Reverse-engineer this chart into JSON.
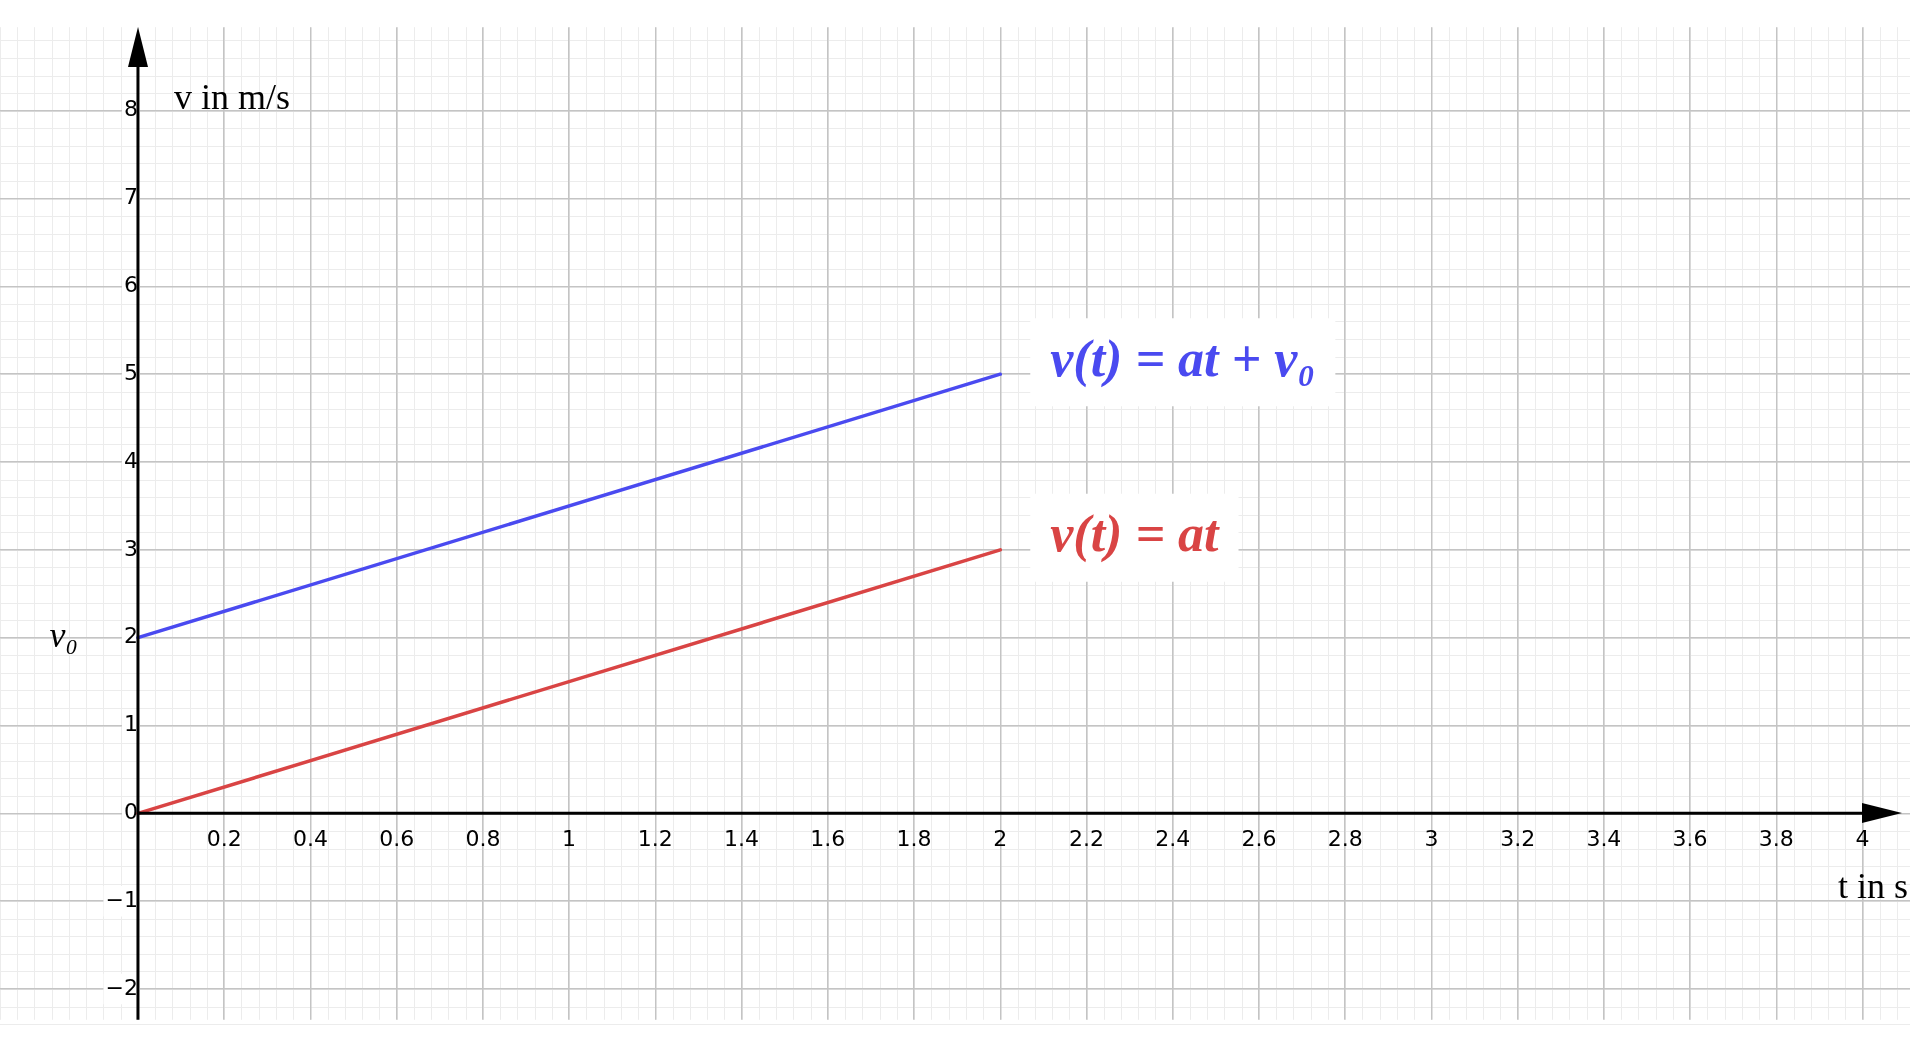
{
  "chart_data": {
    "type": "line",
    "xlabel": "t in s",
    "ylabel": "v in m/s",
    "xlim": [
      -0.32,
      4.11
    ],
    "ylim": [
      -2.35,
      8.95
    ],
    "xticks": [
      0.2,
      0.4,
      0.6,
      0.8,
      1,
      1.2,
      1.4,
      1.6,
      1.8,
      2,
      2.2,
      2.4,
      2.6,
      2.8,
      3,
      3.2,
      3.4,
      3.6,
      3.8,
      4
    ],
    "yticks": [
      -2,
      -1,
      0,
      1,
      2,
      3,
      4,
      5,
      6,
      7,
      8
    ],
    "grid": true,
    "legend": false,
    "line_style": "solid",
    "x": [
      0,
      2
    ],
    "series": [
      {
        "name": "v(t) = at + v₀",
        "color": "#4a4af0",
        "values": [
          2,
          5
        ]
      },
      {
        "name": "v(t) = at",
        "color": "#d94444",
        "values": [
          0,
          3
        ]
      }
    ],
    "annotations": [
      {
        "text": "v₀",
        "x": 0,
        "y": 2
      }
    ]
  }
}
